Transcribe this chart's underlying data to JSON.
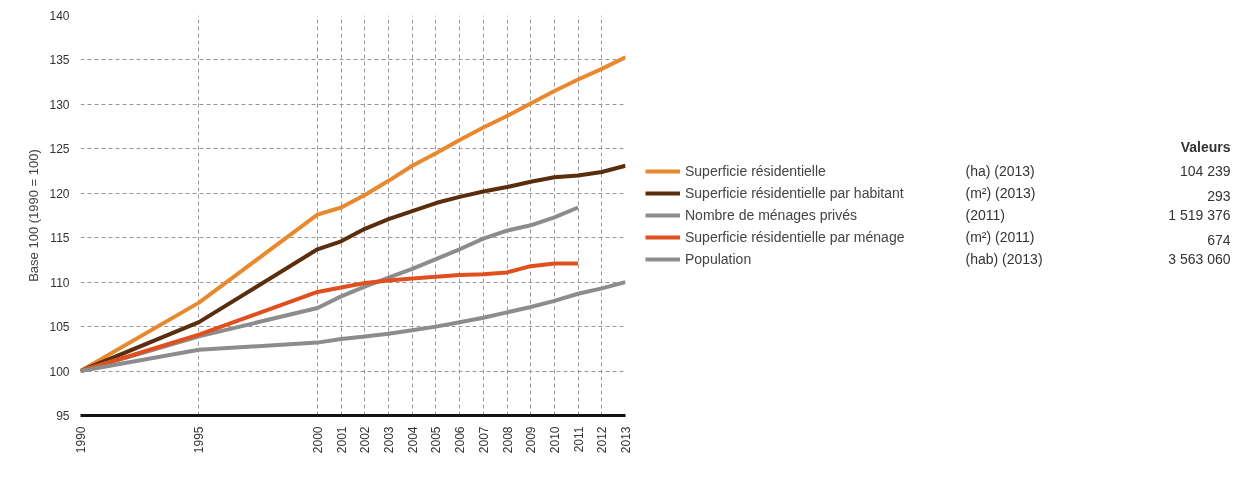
{
  "chart_data": {
    "type": "line",
    "ylabel": "Base 100 (1990 = 100)",
    "x": [
      1990,
      1995,
      2000,
      2001,
      2002,
      2003,
      2004,
      2005,
      2006,
      2007,
      2008,
      2009,
      2010,
      2011,
      2012,
      2013
    ],
    "xlim": [
      1990,
      2013
    ],
    "xticks": [
      1990,
      1995,
      2000,
      2001,
      2002,
      2003,
      2004,
      2005,
      2006,
      2007,
      2008,
      2009,
      2010,
      2011,
      2012,
      2013
    ],
    "ylim": [
      95,
      140
    ],
    "yticks": [
      95,
      100,
      105,
      110,
      115,
      120,
      125,
      130,
      135,
      140
    ],
    "grid": true,
    "legend": "right",
    "line_style": "solid",
    "marker": "none",
    "series": [
      {
        "name": "Superficie résidentielle",
        "color": "#e8892f",
        "values": [
          100,
          107.7,
          117.6,
          118.4,
          119.8,
          121.4,
          123.1,
          124.5,
          126.0,
          127.4,
          128.7,
          130.1,
          131.5,
          132.8,
          134.0,
          135.3
        ]
      },
      {
        "name": "Superficie résidentielle par habitant",
        "color": "#5a2d0c",
        "values": [
          100,
          105.5,
          113.7,
          114.6,
          116.0,
          117.1,
          118.0,
          118.9,
          119.6,
          120.2,
          120.7,
          121.3,
          121.8,
          122.0,
          122.4,
          123.1
        ]
      },
      {
        "name": "Nombre de ménages privés",
        "color": "#8c8c8c",
        "values": [
          100,
          103.9,
          107.1,
          108.4,
          109.5,
          110.5,
          111.5,
          112.6,
          113.7,
          114.9,
          115.8,
          116.4,
          117.3,
          118.4,
          null,
          null
        ]
      },
      {
        "name": "Superficie résidentielle par ménage",
        "color": "#e0501e",
        "values": [
          100,
          104.1,
          108.9,
          109.4,
          109.9,
          110.2,
          110.4,
          110.6,
          110.8,
          110.9,
          111.1,
          111.8,
          112.1,
          112.1,
          null,
          null
        ]
      },
      {
        "name": "Population",
        "color": "#8c8c8c",
        "values": [
          100,
          102.4,
          103.2,
          103.6,
          103.9,
          104.2,
          104.6,
          105.0,
          105.5,
          106.0,
          106.6,
          107.2,
          107.9,
          108.7,
          109.3,
          110.0
        ]
      }
    ],
    "annotations": [
      "Valeurs",
      "(ha) (2013)",
      "104 239",
      "(m²) (2013)",
      "293",
      "(2011)",
      "1 519 376",
      "(m²) (2011)",
      "674",
      "(hab) (2013)",
      "3 563 060"
    ]
  }
}
